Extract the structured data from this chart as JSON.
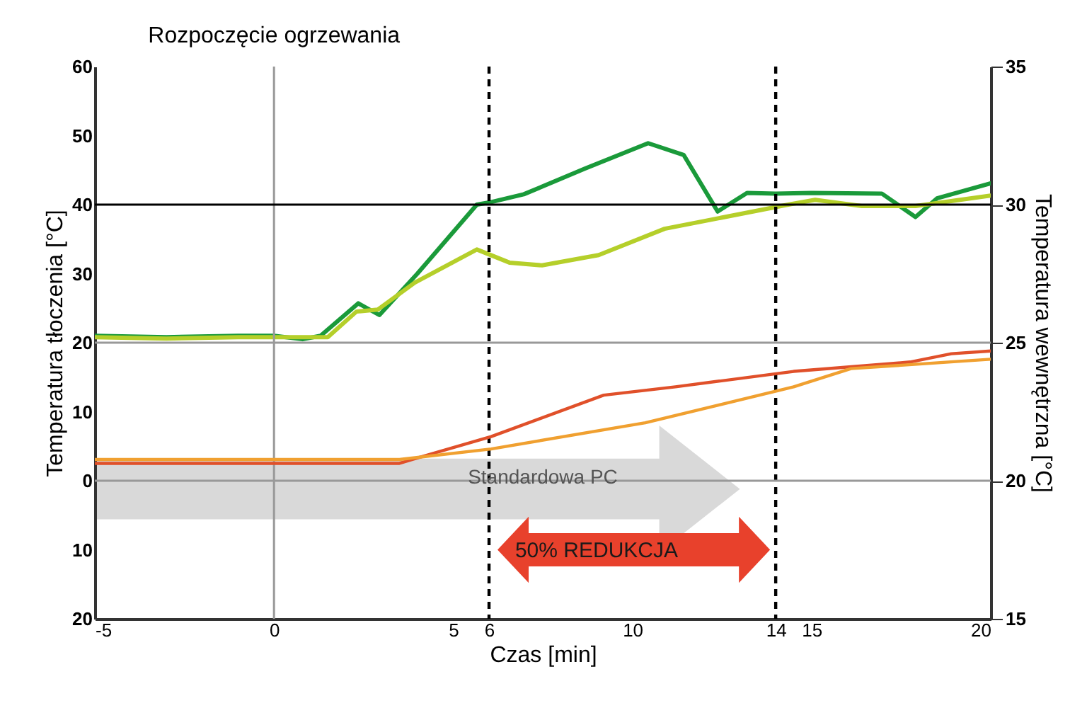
{
  "chart_data": {
    "type": "line",
    "xlabel": "Czas [min]",
    "ylabel": "Temperatura tłoczenia [°C]",
    "y2label": "Temperatura wewnętrzna [°C]",
    "xlim": [
      -5,
      20
    ],
    "xticks": [
      -5,
      0,
      5,
      6,
      10,
      14,
      15,
      20
    ],
    "ylim": [
      -20,
      60
    ],
    "yticks": [
      {
        "value": -20,
        "label": "20"
      },
      {
        "value": -10,
        "label": "10"
      },
      0,
      10,
      20,
      30,
      40,
      50,
      60
    ],
    "y2lim": [
      15,
      35
    ],
    "y2ticks": [
      15,
      20,
      25,
      30,
      35
    ],
    "grid": false,
    "marker": "none",
    "line_style": "solid",
    "series": [
      {
        "color": "#1a9a3a",
        "x": [
          -5,
          -3,
          -1,
          0,
          0.8,
          1.3,
          2.35,
          2.94,
          4,
          5.66,
          6,
          6.97,
          8.67,
          10.44,
          11.43,
          12.38,
          13.2,
          14,
          15,
          16.96,
          17.9,
          18.5,
          20
        ],
        "values": [
          21,
          20.8,
          21,
          21,
          20.5,
          21,
          25.7,
          24,
          30,
          40,
          40.3,
          41.5,
          45.2,
          48.9,
          47.2,
          39,
          41.7,
          41.6,
          41.7,
          41.6,
          38.2,
          40.9,
          43.1
        ]
      },
      {
        "color": "#b5cf2a",
        "x": [
          -5,
          -3,
          -1,
          0,
          1.5,
          2.3,
          2.9,
          3.93,
          5.66,
          6.57,
          7.48,
          9.06,
          10.9,
          14.35,
          15.1,
          16.4,
          17.9,
          20
        ],
        "values": [
          20.8,
          20.6,
          20.8,
          20.8,
          20.8,
          24.5,
          24.8,
          28.7,
          33.5,
          31.6,
          31.2,
          32.7,
          36.5,
          40,
          40.7,
          39.8,
          39.8,
          41.3
        ]
      },
      {
        "color": "#e0502a",
        "axis": "y2",
        "x": [
          -5,
          0,
          3.5,
          3.93,
          6.06,
          9.2,
          11.2,
          14.5,
          17.75,
          18.9,
          20
        ],
        "values": [
          20.63,
          20.63,
          20.63,
          20.8,
          21.6,
          23.1,
          23.4,
          23.96,
          24.3,
          24.6,
          24.7
        ]
      },
      {
        "color": "#f0a030",
        "axis": "y2",
        "x": [
          -5,
          0,
          3.5,
          6.06,
          10.36,
          14.5,
          16.1,
          20
        ],
        "values": [
          20.77,
          20.77,
          20.77,
          21.15,
          22.1,
          23.4,
          24.06,
          24.4
        ]
      }
    ],
    "ref_lines": [
      {
        "axis": "x",
        "value": 0,
        "label": "Rozpoczęcie ogrzewania",
        "color": "#999999",
        "line_style": "solid"
      },
      {
        "axis": "x",
        "value": 6,
        "color": "#000000",
        "line_style": "dashed"
      },
      {
        "axis": "x",
        "value": 14,
        "color": "#000000",
        "line_style": "dashed"
      },
      {
        "axis": "y",
        "value": 40,
        "color": "#000000",
        "line_style": "solid"
      },
      {
        "axis": "y",
        "value": 20,
        "color": "#999999",
        "line_style": "solid"
      },
      {
        "axis": "y",
        "value": 0,
        "color": "#999999",
        "line_style": "solid"
      }
    ],
    "annotations": [
      "Standardowa PC",
      "50% REDUKCJA"
    ]
  }
}
